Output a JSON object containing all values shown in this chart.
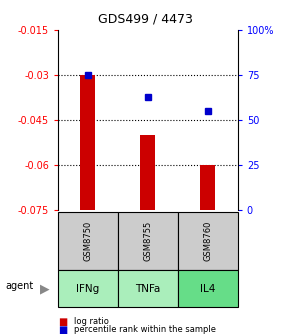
{
  "title": "GDS499 / 4473",
  "categories": [
    "IFNg",
    "TNFa",
    "IL4"
  ],
  "gsm_labels": [
    "GSM8750",
    "GSM8755",
    "GSM8760"
  ],
  "log_ratios": [
    -0.03,
    -0.05,
    -0.06
  ],
  "percentile_ranks": [
    75.0,
    63.0,
    55.0
  ],
  "ylim_left": [
    -0.075,
    -0.015
  ],
  "ylim_right": [
    0,
    100
  ],
  "yticks_left": [
    -0.075,
    -0.06,
    -0.045,
    -0.03,
    -0.015
  ],
  "yticks_right": [
    0,
    25,
    50,
    75,
    100
  ],
  "ytick_labels_left": [
    "-0.075",
    "-0.06",
    "-0.045",
    "-0.03",
    "-0.015"
  ],
  "ytick_labels_right": [
    "0",
    "25",
    "50",
    "75",
    "100%"
  ],
  "bar_color": "#cc0000",
  "dot_color": "#0000cc",
  "gray_box_color": "#cccccc",
  "green_box_color": "#aaeebb",
  "green_box_color2": "#66dd88",
  "legend_log": "log ratio",
  "legend_pct": "percentile rank within the sample",
  "bar_width": 0.25,
  "bar_bottom": -0.075
}
